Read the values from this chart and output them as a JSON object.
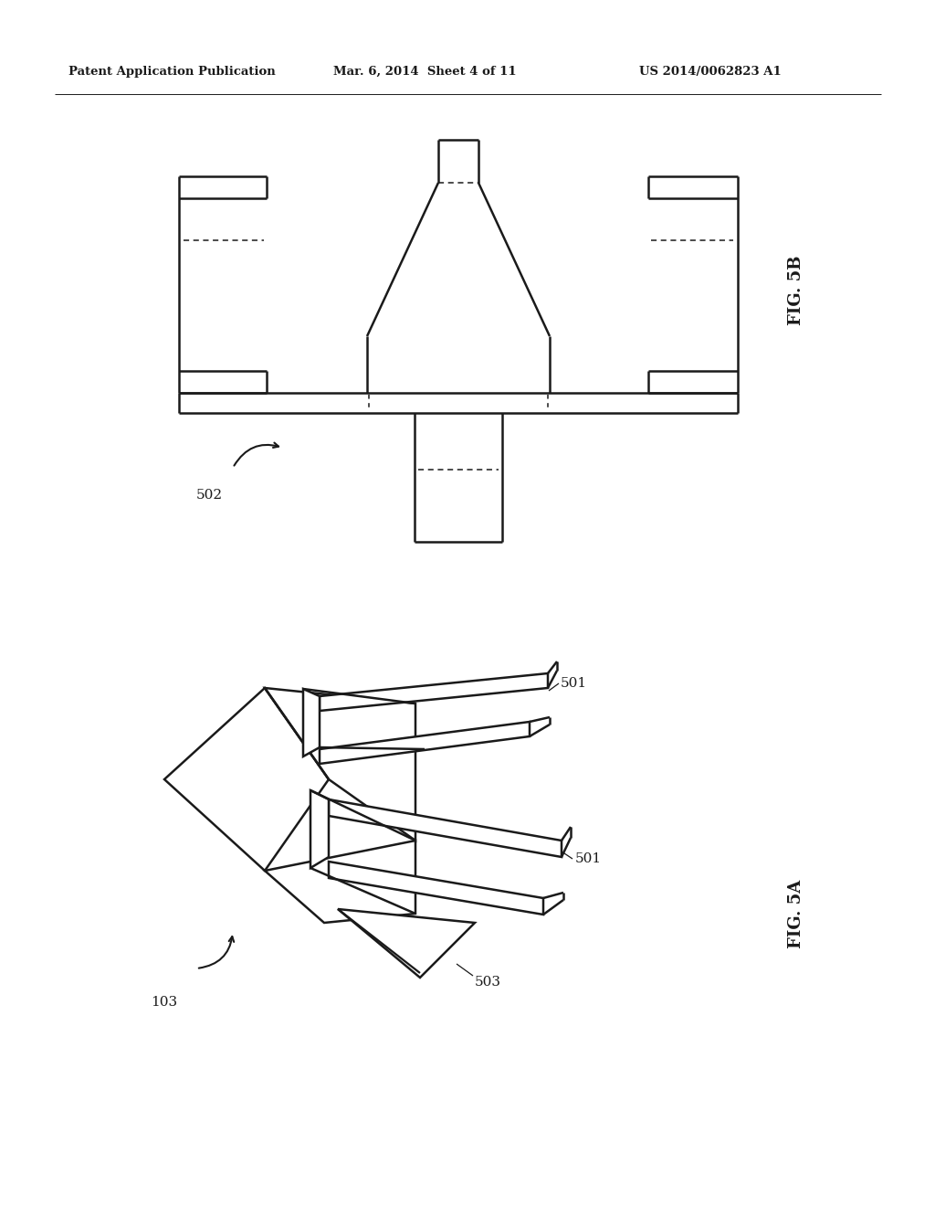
{
  "background_color": "#ffffff",
  "line_color": "#1a1a1a",
  "header_left": "Patent Application Publication",
  "header_mid": "Mar. 6, 2014  Sheet 4 of 11",
  "header_right": "US 2014/0062823 A1",
  "fig5b_label": "FIG. 5B",
  "fig5a_label": "FIG. 5A",
  "label_502": "502",
  "label_501_top": "501",
  "label_501_bot": "501",
  "label_503": "503",
  "label_103": "103"
}
